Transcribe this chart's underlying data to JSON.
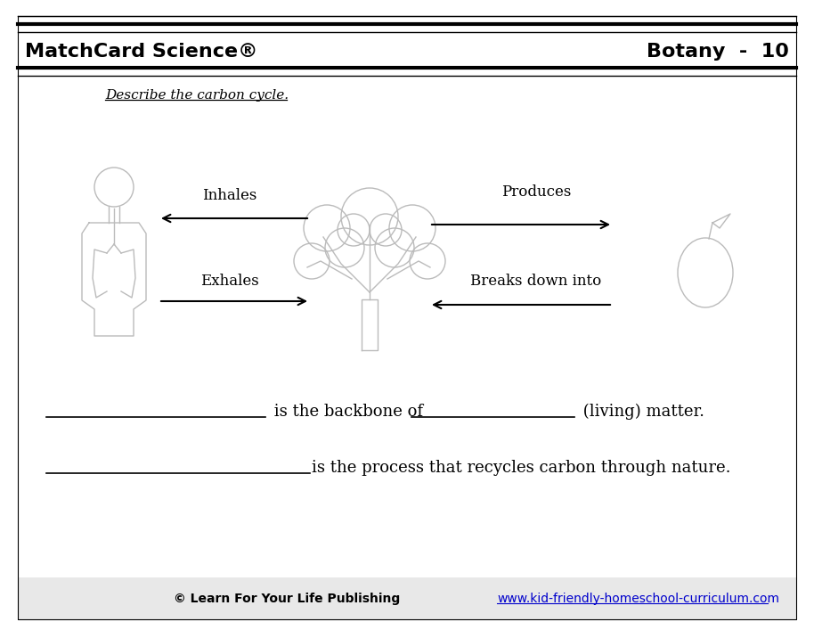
{
  "title_left": "MatchCard Science®",
  "title_right": "Botany  -  10",
  "subtitle": "Describe the carbon cycle.",
  "label_inhales": "Inhales",
  "label_exhales": "Exhales",
  "label_produces": "Produces",
  "label_breaks": "Breaks down into",
  "sentence1_prefix": " is the backbone of ",
  "sentence1_suffix": " (living) matter.",
  "sentence2_prefix": "is the process that recycles carbon through nature.",
  "footer_left": "© Learn For Your Life Publishing",
  "footer_url": "www.kid-friendly-homeschool-curriculum.com",
  "bg_color": "#ffffff",
  "footer_bg": "#e8e8e8",
  "sketch_color": "#bbbbbb",
  "url_color": "#0000cc"
}
